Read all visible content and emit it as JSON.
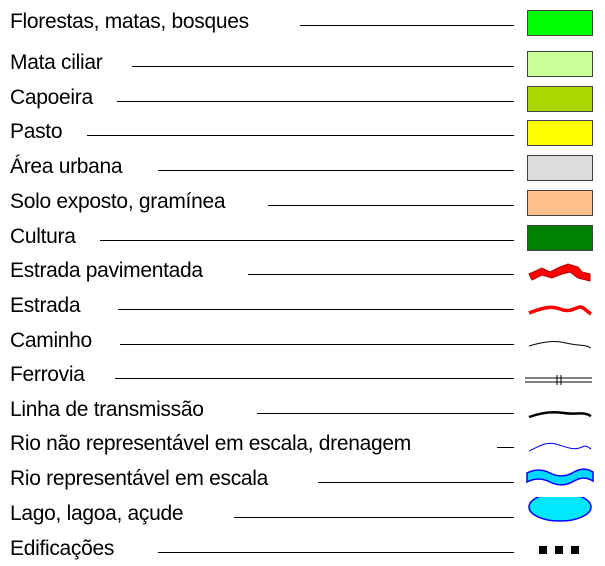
{
  "legend": {
    "items": [
      {
        "label": "Florestas, matas, bosques",
        "color": "#00ff00",
        "symbol": "swatch"
      },
      {
        "label": "Mata ciliar",
        "color": "#c8ff96",
        "symbol": "swatch"
      },
      {
        "label": "Capoeira",
        "color": "#a8d800",
        "symbol": "swatch"
      },
      {
        "label": "Pasto",
        "color": "#ffff00",
        "symbol": "swatch"
      },
      {
        "label": "Área urbana",
        "color": "#dcdcdc",
        "symbol": "swatch"
      },
      {
        "label": "Solo exposto, gramínea",
        "color": "#ffc08c",
        "symbol": "swatch"
      },
      {
        "label": "Cultura",
        "color": "#008000",
        "symbol": "swatch"
      },
      {
        "label": "Estrada pavimentada",
        "color": "#ff0000",
        "symbol": "paved-road-icon"
      },
      {
        "label": "Estrada",
        "color": "#ff0000",
        "symbol": "road-icon"
      },
      {
        "label": "Caminho",
        "color": "#000000",
        "symbol": "trail-icon"
      },
      {
        "label": "Ferrovia",
        "color": "#000000",
        "symbol": "railway-icon"
      },
      {
        "label": "Linha de transmissão",
        "color": "#000000",
        "symbol": "power-line-icon"
      },
      {
        "label": "Rio não representável em escala, drenagem",
        "color": "#0000ff",
        "symbol": "stream-icon"
      },
      {
        "label": "Rio representável em escala",
        "color": "#00d8ff",
        "symbol": "river-icon"
      },
      {
        "label": "Lago, lagoa, açude",
        "color": "#00e8ff",
        "symbol": "lake-icon"
      },
      {
        "label": "Edificações",
        "color": "#000000",
        "symbol": "buildings-icon"
      }
    ]
  }
}
